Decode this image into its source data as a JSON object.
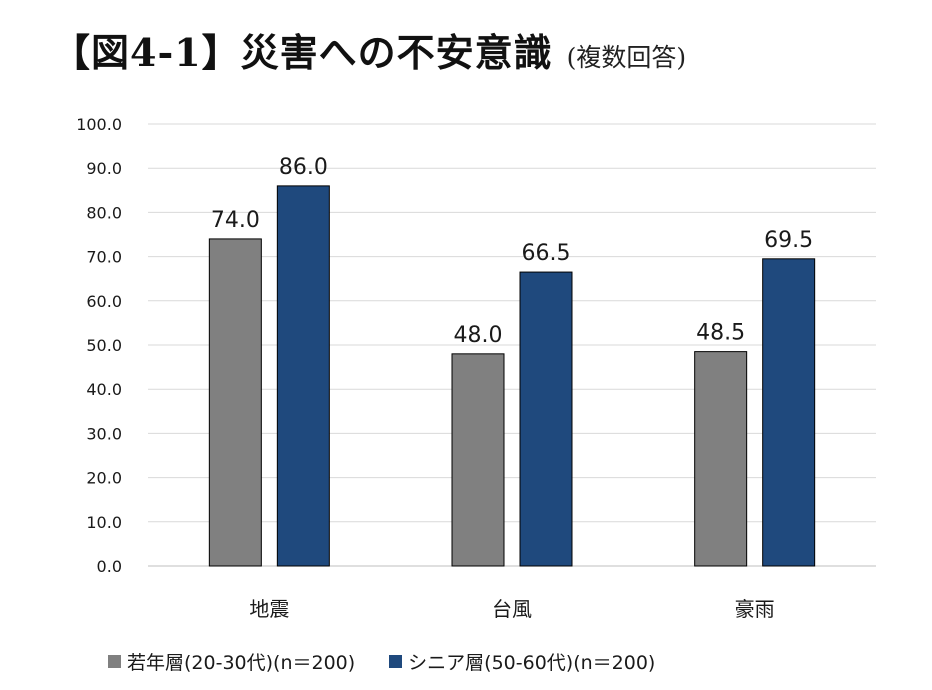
{
  "header": {
    "title": "【図4-1】災害への不安意識",
    "subtitle": "(複数回答)"
  },
  "chart_data": {
    "type": "bar",
    "title": "【図4-1】災害への不安意識",
    "subtitle": "(複数回答)",
    "categories": [
      "地震",
      "台風",
      "豪雨"
    ],
    "series": [
      {
        "name": "若年層(20-30代)(n＝200)",
        "values": [
          74.0,
          48.0,
          48.5
        ],
        "color": "#808080"
      },
      {
        "name": "シニア層(50-60代)(n＝200)",
        "values": [
          86.0,
          66.5,
          69.5
        ],
        "color": "#1f497d"
      }
    ],
    "ylim": [
      0,
      100
    ],
    "yticks": [
      "0.0",
      "10.0",
      "20.0",
      "30.0",
      "40.0",
      "50.0",
      "60.0",
      "70.0",
      "80.0",
      "90.0",
      "100.0"
    ],
    "xlabel": "",
    "ylabel": "",
    "grid": true,
    "legend_position": "bottom"
  }
}
